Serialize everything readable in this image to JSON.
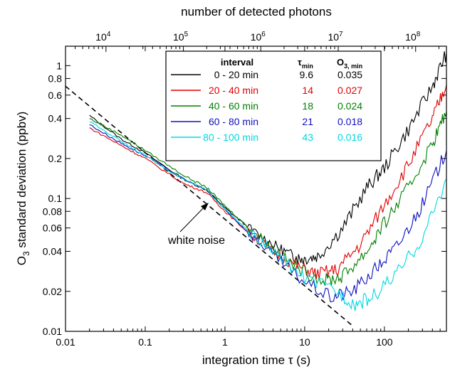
{
  "chart_data": {
    "type": "line",
    "xlabel": "integration time τ (s)",
    "ylabel": "O3 standard deviation (ppbv)",
    "top_xlabel": "number of detected photons",
    "xscale": "log",
    "yscale": "log",
    "xlim": [
      0.01,
      600
    ],
    "ylim": [
      0.01,
      1.4
    ],
    "top_xlim": [
      3000,
      250000000
    ],
    "x_ticks": [
      {
        "v": 0.01,
        "label": "0.01"
      },
      {
        "v": 0.1,
        "label": "0.1"
      },
      {
        "v": 1,
        "label": "1"
      },
      {
        "v": 10,
        "label": "10"
      },
      {
        "v": 100,
        "label": "100"
      }
    ],
    "y_ticks": [
      {
        "v": 0.01,
        "label": "0.01"
      },
      {
        "v": 0.02,
        "label": "0.02"
      },
      {
        "v": 0.04,
        "label": "0.04"
      },
      {
        "v": 0.06,
        "label": "0.06"
      },
      {
        "v": 0.08,
        "label": "0.08"
      },
      {
        "v": 0.1,
        "label": "0.1"
      },
      {
        "v": 0.2,
        "label": "0.2"
      },
      {
        "v": 0.4,
        "label": "0.4"
      },
      {
        "v": 0.6,
        "label": "0.6"
      },
      {
        "v": 0.8,
        "label": "0.8"
      },
      {
        "v": 1,
        "label": "1"
      }
    ],
    "top_ticks": [
      {
        "v": 10000,
        "base": "10",
        "exp": "4"
      },
      {
        "v": 100000,
        "base": "10",
        "exp": "5"
      },
      {
        "v": 1000000,
        "base": "10",
        "exp": "6"
      },
      {
        "v": 10000000,
        "base": "10",
        "exp": "7"
      },
      {
        "v": 100000000,
        "base": "10",
        "exp": "8"
      }
    ],
    "series": [
      {
        "name": "0 - 20 min",
        "tau_min": "9.6",
        "o3_min": "0.035",
        "color": "#000000",
        "points": [
          [
            0.02,
            0.42
          ],
          [
            0.05,
            0.28
          ],
          [
            0.1,
            0.22
          ],
          [
            0.3,
            0.14
          ],
          [
            0.6,
            0.115
          ],
          [
            1,
            0.085
          ],
          [
            2,
            0.06
          ],
          [
            4,
            0.045
          ],
          [
            7,
            0.037
          ],
          [
            9.6,
            0.035
          ],
          [
            15,
            0.037
          ],
          [
            30,
            0.06
          ],
          [
            60,
            0.12
          ],
          [
            100,
            0.17
          ],
          [
            200,
            0.33
          ],
          [
            400,
            0.7
          ],
          [
            600,
            1.25
          ]
        ]
      },
      {
        "name": "20 - 40 min",
        "tau_min": "14",
        "o3_min": "0.027",
        "color": "#e00000",
        "points": [
          [
            0.02,
            0.34
          ],
          [
            0.05,
            0.25
          ],
          [
            0.1,
            0.2
          ],
          [
            0.3,
            0.13
          ],
          [
            0.6,
            0.11
          ],
          [
            1,
            0.08
          ],
          [
            2,
            0.055
          ],
          [
            4,
            0.04
          ],
          [
            8,
            0.031
          ],
          [
            14,
            0.027
          ],
          [
            25,
            0.029
          ],
          [
            50,
            0.045
          ],
          [
            100,
            0.09
          ],
          [
            200,
            0.18
          ],
          [
            400,
            0.4
          ],
          [
            600,
            0.72
          ]
        ]
      },
      {
        "name": "40 - 60 min",
        "tau_min": "18",
        "o3_min": "0.024",
        "color": "#008000",
        "points": [
          [
            0.02,
            0.4
          ],
          [
            0.05,
            0.3
          ],
          [
            0.1,
            0.23
          ],
          [
            0.3,
            0.15
          ],
          [
            0.6,
            0.12
          ],
          [
            1,
            0.088
          ],
          [
            2,
            0.06
          ],
          [
            4,
            0.042
          ],
          [
            8,
            0.03
          ],
          [
            18,
            0.024
          ],
          [
            30,
            0.026
          ],
          [
            60,
            0.04
          ],
          [
            100,
            0.065
          ],
          [
            200,
            0.12
          ],
          [
            400,
            0.26
          ],
          [
            600,
            0.45
          ]
        ]
      },
      {
        "name": "60 - 80 min",
        "tau_min": "21",
        "o3_min": "0.018",
        "color": "#1010c0",
        "points": [
          [
            0.02,
            0.36
          ],
          [
            0.05,
            0.26
          ],
          [
            0.1,
            0.21
          ],
          [
            0.3,
            0.14
          ],
          [
            0.6,
            0.115
          ],
          [
            1,
            0.082
          ],
          [
            2,
            0.055
          ],
          [
            4,
            0.038
          ],
          [
            8,
            0.026
          ],
          [
            21,
            0.018
          ],
          [
            40,
            0.02
          ],
          [
            80,
            0.03
          ],
          [
            150,
            0.045
          ],
          [
            300,
            0.09
          ],
          [
            600,
            0.23
          ]
        ]
      },
      {
        "name": "80 - 100 min",
        "tau_min": "43",
        "o3_min": "0.016",
        "color": "#00d8e0",
        "points": [
          [
            0.02,
            0.38
          ],
          [
            0.05,
            0.27
          ],
          [
            0.1,
            0.21
          ],
          [
            0.3,
            0.14
          ],
          [
            0.6,
            0.115
          ],
          [
            1,
            0.083
          ],
          [
            2,
            0.056
          ],
          [
            4,
            0.04
          ],
          [
            10,
            0.025
          ],
          [
            25,
            0.02
          ],
          [
            43,
            0.016
          ],
          [
            70,
            0.018
          ],
          [
            150,
            0.028
          ],
          [
            300,
            0.05
          ],
          [
            600,
            0.14
          ]
        ]
      }
    ],
    "white_noise_line": {
      "points": [
        [
          0.01,
          0.7
        ],
        [
          10,
          0.022
        ],
        [
          40,
          0.011
        ]
      ]
    },
    "annotation": "white noise",
    "legend": {
      "placement": "top-right",
      "header_interval": "interval",
      "header_tau": "τ",
      "header_tau_sub": "min",
      "header_o3": "O",
      "header_o3_sub": "3, min"
    }
  }
}
